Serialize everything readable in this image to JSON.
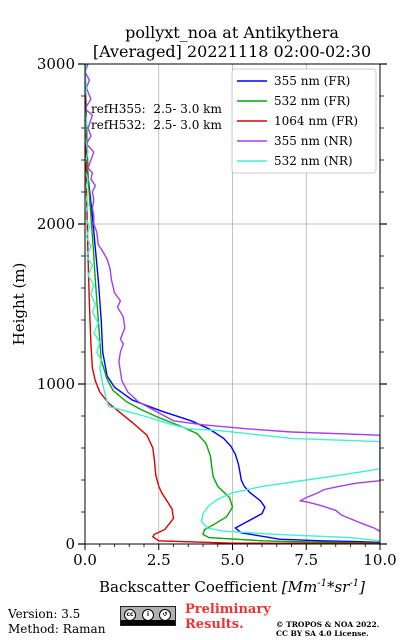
{
  "chart_data": {
    "type": "line",
    "title_line1": "pollyxt_noa at Antikythera",
    "title_line2": "[Averaged] 20221118 02:00-02:30",
    "xlabel_prefix": "Backscatter Coefficient ",
    "xlabel_unit": "[Mm^-1*sr^-1]",
    "ylabel": "Height (m)",
    "xlim": [
      0,
      10
    ],
    "ylim": [
      0,
      3000
    ],
    "xticks": [
      0,
      2.5,
      5,
      7.5,
      10
    ],
    "xtick_labels": [
      "0.0",
      "2.5",
      "5.0",
      "7.5",
      "10.0"
    ],
    "yticks": [
      0,
      1000,
      2000,
      3000
    ],
    "ytick_labels": [
      "0",
      "1000",
      "2000",
      "3000"
    ],
    "grid": true,
    "legend_position": "top-right",
    "annotations": [
      "refH355:  2.5- 3.0 km",
      "refH532:  2.5- 3.0 km"
    ],
    "series": [
      {
        "name": "355 nm (FR)",
        "color": "#0000ff",
        "points": [
          [
            10,
            10
          ],
          [
            9.2,
            15
          ],
          [
            8,
            20
          ],
          [
            6.6,
            30
          ],
          [
            5.3,
            70
          ],
          [
            5.1,
            100
          ],
          [
            5.6,
            150
          ],
          [
            6.0,
            190
          ],
          [
            6.1,
            230
          ],
          [
            5.95,
            270
          ],
          [
            5.6,
            320
          ],
          [
            5.4,
            360
          ],
          [
            5.3,
            400
          ],
          [
            5.25,
            450
          ],
          [
            5.2,
            500
          ],
          [
            5.1,
            560
          ],
          [
            4.95,
            610
          ],
          [
            4.7,
            660
          ],
          [
            4.2,
            720
          ],
          [
            3.6,
            770
          ],
          [
            2.6,
            830
          ],
          [
            1.6,
            900
          ],
          [
            1.3,
            940
          ],
          [
            1.0,
            980
          ],
          [
            0.75,
            1050
          ],
          [
            0.6,
            1200
          ],
          [
            0.55,
            1400
          ],
          [
            0.45,
            1650
          ],
          [
            0.35,
            1850
          ],
          [
            0.25,
            2050
          ],
          [
            0.1,
            2300
          ],
          [
            0.05,
            2600
          ],
          [
            0,
            3000
          ]
        ]
      },
      {
        "name": "532 nm (FR)",
        "color": "#00aa00",
        "points": [
          [
            10,
            5
          ],
          [
            7,
            15
          ],
          [
            6,
            20
          ],
          [
            4.2,
            40
          ],
          [
            4.0,
            60
          ],
          [
            4.05,
            90
          ],
          [
            4.35,
            120
          ],
          [
            4.8,
            170
          ],
          [
            5.0,
            230
          ],
          [
            4.9,
            290
          ],
          [
            4.5,
            360
          ],
          [
            4.35,
            420
          ],
          [
            4.3,
            480
          ],
          [
            4.25,
            550
          ],
          [
            4.1,
            630
          ],
          [
            3.8,
            690
          ],
          [
            3.2,
            740
          ],
          [
            2.5,
            790
          ],
          [
            1.9,
            840
          ],
          [
            1.4,
            890
          ],
          [
            0.95,
            960
          ],
          [
            0.75,
            1030
          ],
          [
            0.55,
            1150
          ],
          [
            0.45,
            1400
          ],
          [
            0.35,
            1650
          ],
          [
            0.28,
            1850
          ],
          [
            0.2,
            2050
          ],
          [
            0.1,
            2300
          ],
          [
            0.05,
            2600
          ],
          [
            0,
            3000
          ]
        ]
      },
      {
        "name": "1064 nm (FR)",
        "color": "#dd0000",
        "points": [
          [
            10,
            3
          ],
          [
            5,
            5
          ],
          [
            2.5,
            20
          ],
          [
            2.3,
            45
          ],
          [
            2.35,
            60
          ],
          [
            2.7,
            90
          ],
          [
            3.0,
            160
          ],
          [
            2.95,
            220
          ],
          [
            2.6,
            320
          ],
          [
            2.5,
            360
          ],
          [
            2.4,
            430
          ],
          [
            2.35,
            530
          ],
          [
            2.3,
            600
          ],
          [
            2.1,
            680
          ],
          [
            1.6,
            760
          ],
          [
            1.2,
            820
          ],
          [
            0.8,
            880
          ],
          [
            0.5,
            950
          ],
          [
            0.35,
            1020
          ],
          [
            0.25,
            1100
          ],
          [
            0.2,
            1250
          ],
          [
            0.15,
            1500
          ],
          [
            0.1,
            1800
          ],
          [
            0.05,
            2200
          ],
          [
            0,
            3000
          ]
        ]
      },
      {
        "name": "355 nm (NR)",
        "color": "#a040f0",
        "points": [
          [
            10,
            80
          ],
          [
            9.8,
            100
          ],
          [
            9.5,
            120
          ],
          [
            9.1,
            150
          ],
          [
            8.7,
            180
          ],
          [
            8.5,
            210
          ],
          [
            8.0,
            240
          ],
          [
            7.6,
            260
          ],
          [
            7.3,
            270
          ],
          [
            7.5,
            290
          ],
          [
            7.9,
            320
          ],
          [
            8.1,
            340
          ],
          [
            8.6,
            360
          ],
          [
            9.2,
            380
          ],
          [
            9.7,
            390
          ],
          [
            10,
            395
          ],
          [
            10,
            680
          ],
          [
            7.0,
            700
          ],
          [
            5.5,
            720
          ],
          [
            4.0,
            745
          ],
          [
            3.0,
            770
          ],
          [
            2.4,
            830
          ],
          [
            1.8,
            890
          ],
          [
            1.45,
            950
          ],
          [
            1.25,
            1020
          ],
          [
            1.2,
            1080
          ],
          [
            1.15,
            1140
          ],
          [
            1.2,
            1200
          ],
          [
            1.3,
            1250
          ],
          [
            1.2,
            1280
          ],
          [
            1.35,
            1350
          ],
          [
            1.3,
            1420
          ],
          [
            1.1,
            1480
          ],
          [
            1.2,
            1520
          ],
          [
            1.0,
            1570
          ],
          [
            0.9,
            1650
          ],
          [
            0.85,
            1720
          ],
          [
            0.75,
            1780
          ],
          [
            0.6,
            1830
          ],
          [
            0.45,
            1870
          ],
          [
            0.4,
            1950
          ],
          [
            0.3,
            2000
          ],
          [
            0.3,
            2050
          ],
          [
            0.25,
            2100
          ],
          [
            0.3,
            2150
          ],
          [
            0.25,
            2200
          ],
          [
            0.35,
            2240
          ],
          [
            0.2,
            2280
          ],
          [
            0.25,
            2320
          ],
          [
            0.1,
            2350
          ],
          [
            0.3,
            2450
          ],
          [
            0.05,
            2500
          ],
          [
            0.2,
            2550
          ],
          [
            0.1,
            2600
          ],
          [
            0.25,
            2680
          ],
          [
            0.0,
            2720
          ],
          [
            0.2,
            2780
          ],
          [
            0.05,
            2850
          ],
          [
            0.15,
            2900
          ],
          [
            0.0,
            2950
          ],
          [
            0.1,
            3000
          ]
        ]
      },
      {
        "name": "532 nm (NR)",
        "color": "#40f0d0",
        "points": [
          [
            10,
            20
          ],
          [
            9,
            40
          ],
          [
            6.5,
            60
          ],
          [
            4.7,
            80
          ],
          [
            4.15,
            100
          ],
          [
            3.95,
            140
          ],
          [
            4.0,
            190
          ],
          [
            4.2,
            240
          ],
          [
            4.5,
            280
          ],
          [
            5.0,
            320
          ],
          [
            6.0,
            360
          ],
          [
            7.5,
            400
          ],
          [
            9.0,
            440
          ],
          [
            10,
            470
          ],
          [
            10,
            640
          ],
          [
            7.0,
            660
          ],
          [
            5.5,
            690
          ],
          [
            4.5,
            710
          ],
          [
            3.5,
            720
          ],
          [
            2.7,
            760
          ],
          [
            2.0,
            800
          ],
          [
            1.4,
            830
          ],
          [
            0.8,
            860
          ],
          [
            0.7,
            920
          ],
          [
            0.6,
            1000
          ],
          [
            0.5,
            1100
          ],
          [
            0.55,
            1150
          ],
          [
            0.4,
            1200
          ],
          [
            0.5,
            1260
          ],
          [
            0.3,
            1320
          ],
          [
            0.45,
            1380
          ],
          [
            0.25,
            1450
          ],
          [
            0.35,
            1500
          ],
          [
            0.2,
            1560
          ],
          [
            0.3,
            1620
          ],
          [
            0.1,
            1680
          ],
          [
            0.25,
            1740
          ],
          [
            0.05,
            1800
          ],
          [
            0.2,
            1860
          ],
          [
            0.05,
            1920
          ],
          [
            0.15,
            1980
          ],
          [
            0.0,
            2050
          ],
          [
            0.1,
            2120
          ],
          [
            0.0,
            2200
          ],
          [
            0.1,
            2280
          ],
          [
            -0.05,
            2350
          ],
          [
            0.1,
            2450
          ],
          [
            0.0,
            2550
          ],
          [
            0.05,
            2650
          ],
          [
            -0.05,
            2750
          ],
          [
            0.05,
            2850
          ],
          [
            0.0,
            2950
          ],
          [
            0.05,
            3000
          ]
        ]
      }
    ]
  },
  "footer": {
    "version": "Version: 3.5",
    "method": "Method: Raman",
    "preliminary_line1": "Preliminary",
    "preliminary_line2": "Results.",
    "license_line1": "© TROPOS & NOA 2022.",
    "license_line2": "CC BY SA 4.0 License.",
    "cc_badge_icons": [
      "cc-icon",
      "by-icon",
      "sa-icon"
    ]
  }
}
